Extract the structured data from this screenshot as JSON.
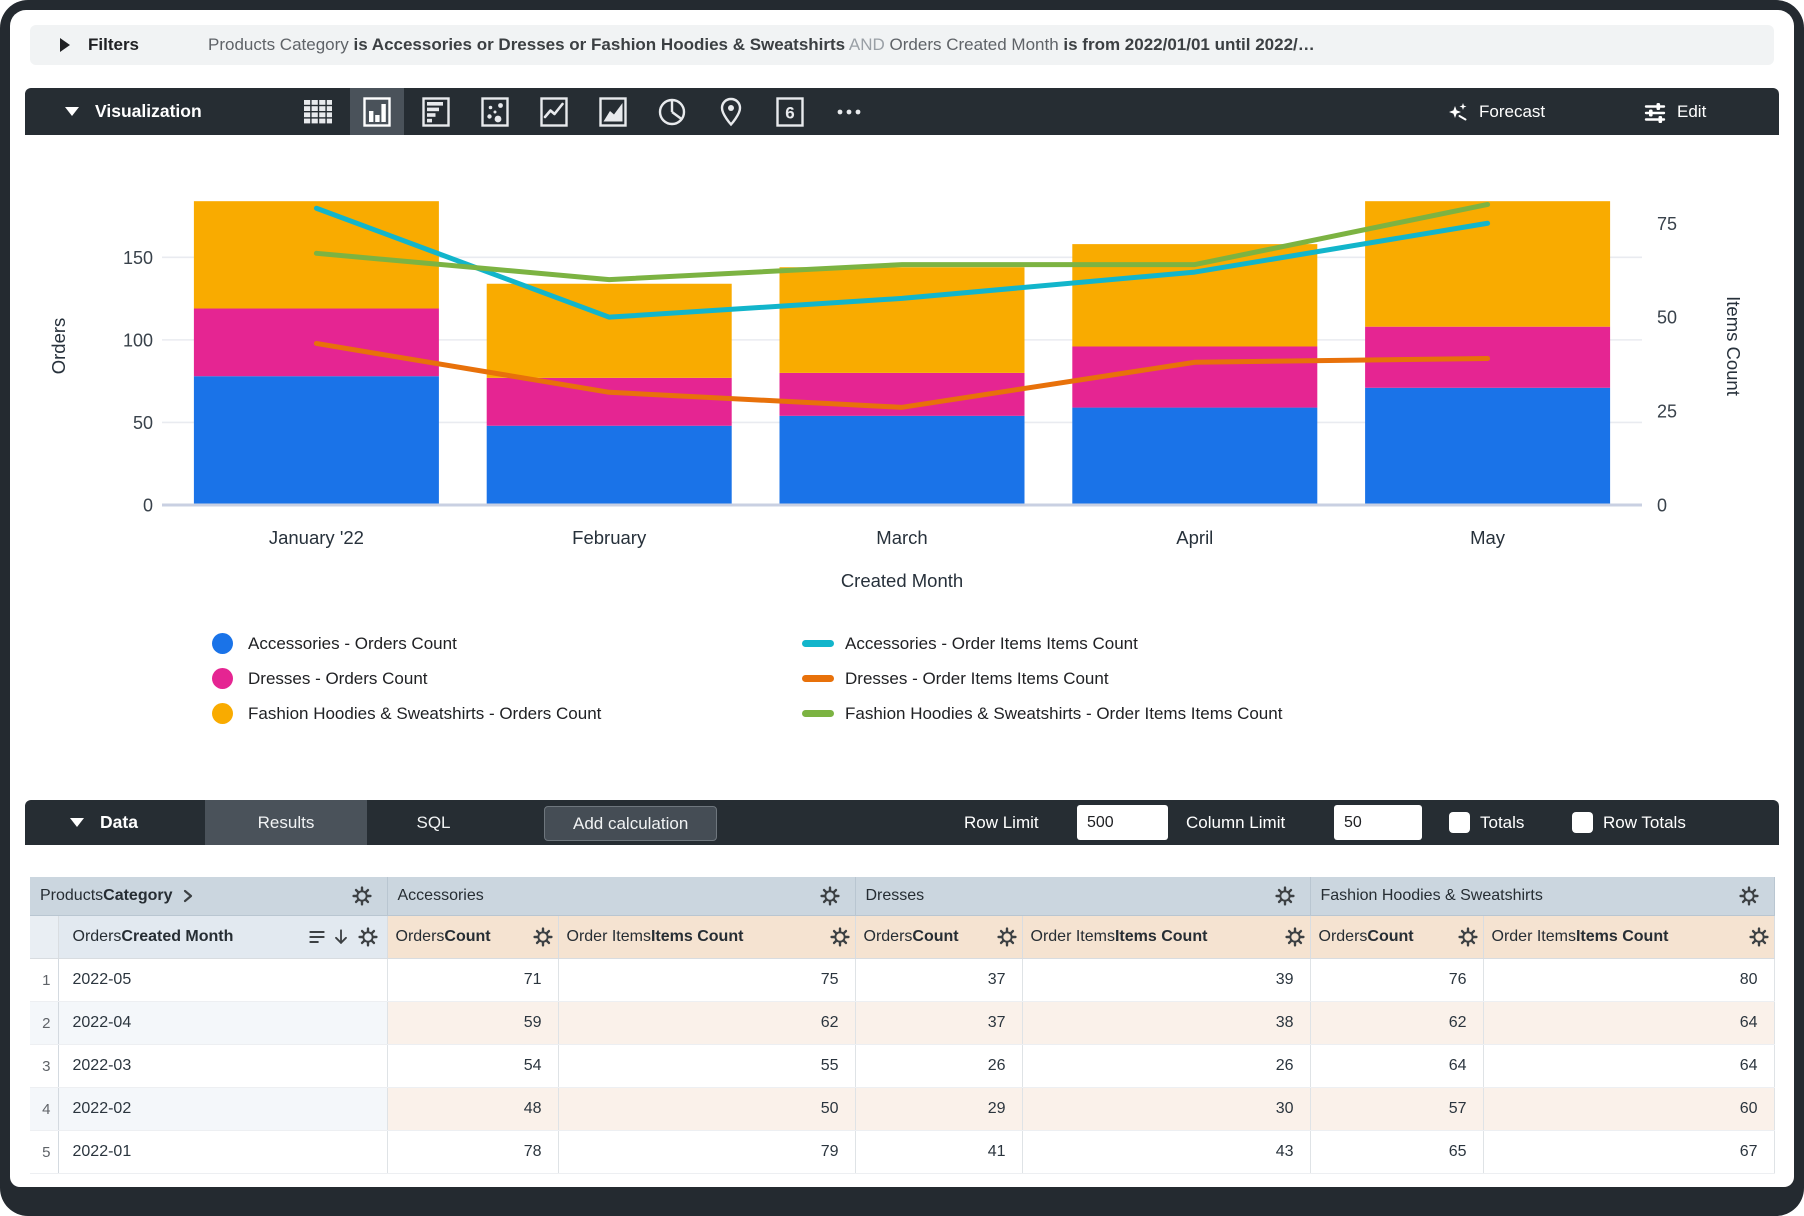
{
  "colors": {
    "toolbar_dark": "#262D33",
    "toolbar_selected": "#4A525A",
    "filters_bg": "#F1F3F4",
    "group_header_bg": "#CBD6DF",
    "dimension_header_bg": "#E2E9F0",
    "measure_header_bg": "#F5E3D1"
  },
  "filters": {
    "label": "Filters",
    "segments": [
      {
        "t": "Products Category "
      },
      {
        "t": "is Accessories or Dresses or Fashion Hoodies & Sweatshirts"
      },
      {
        "t": " AND "
      },
      {
        "t": "Orders Created Month "
      },
      {
        "t": "is from 2022/01/01 until 2022/…"
      }
    ],
    "expand_icon": "chevron-right-triangle"
  },
  "viz": {
    "label": "Visualization",
    "collapse_icon": "triangle-down",
    "icons": [
      "table-chart",
      "column-chart",
      "bar-chart",
      "scatter-chart",
      "line-chart",
      "area-chart",
      "pie-chart",
      "map-pin",
      "single-value",
      "more-ellipsis"
    ],
    "selected_icon": "column-chart",
    "single_value_glyph": "6",
    "forecast_label": "Forecast",
    "forecast_icon": "sparkle",
    "edit_label": "Edit",
    "edit_icon": "tune-sliders"
  },
  "chart_data": {
    "type": "combo-stacked-column-and-line",
    "categories": [
      "January '22",
      "February",
      "March",
      "April",
      "May"
    ],
    "bar_series": [
      {
        "name": "Accessories - Orders Count",
        "color": "#1A73E8",
        "values": [
          78,
          48,
          54,
          59,
          71
        ]
      },
      {
        "name": "Dresses - Orders Count",
        "color": "#E52592",
        "values": [
          41,
          29,
          26,
          37,
          37
        ]
      },
      {
        "name": "Fashion Hoodies & Sweatshirts - Orders Count",
        "color": "#F9AB00",
        "values": [
          65,
          57,
          64,
          62,
          76
        ]
      }
    ],
    "line_series": [
      {
        "name": "Accessories - Order Items Items Count",
        "color": "#12B5CB",
        "values": [
          79,
          50,
          55,
          62,
          75
        ]
      },
      {
        "name": "Dresses - Order Items Items Count",
        "color": "#E8710A",
        "values": [
          43,
          30,
          26,
          38,
          39
        ]
      },
      {
        "name": "Fashion Hoodies & Sweatshirts - Order Items Items Count",
        "color": "#7CB342",
        "values": [
          67,
          60,
          64,
          64,
          80
        ]
      }
    ],
    "left_axis": {
      "title": "Orders",
      "ticks": [
        0,
        50,
        100,
        150
      ],
      "max": 215
    },
    "right_axis": {
      "title": "Items Count",
      "ticks": [
        0,
        25,
        50,
        75
      ],
      "max": 94.5
    },
    "x_axis": {
      "title": "Created Month"
    },
    "grid": true,
    "legend_position": "bottom-two-columns"
  },
  "data_section": {
    "label": "Data",
    "collapse_icon": "triangle-down",
    "tabs": [
      {
        "label": "Results",
        "active": true
      },
      {
        "label": "SQL",
        "active": false
      }
    ],
    "add_calculation_label": "Add calculation",
    "row_limit_label": "Row Limit",
    "row_limit_value": "500",
    "column_limit_label": "Column Limit",
    "column_limit_value": "50",
    "totals_label": "Totals",
    "totals_checked": false,
    "row_totals_label": "Row Totals",
    "row_totals_checked": false
  },
  "table": {
    "dimension_group": {
      "normal": "Products ",
      "bold": "Category",
      "expand_icon": "chevron-right",
      "gear_icon": "gear"
    },
    "groups": [
      "Accessories",
      "Dresses",
      "Fashion Hoodies & Sweatshirts"
    ],
    "dimension_col": {
      "normal": "Orders ",
      "bold": "Created Month",
      "icons": [
        "subtotal-list",
        "sort-arrow-down",
        "gear"
      ]
    },
    "measure_cols": [
      {
        "normal": "Orders ",
        "bold": "Count"
      },
      {
        "normal": "Order Items ",
        "bold": "Items Count"
      }
    ],
    "rows": [
      {
        "num": "1",
        "month": "2022-05",
        "values": [
          71,
          75,
          37,
          39,
          76,
          80
        ]
      },
      {
        "num": "2",
        "month": "2022-04",
        "values": [
          59,
          62,
          37,
          38,
          62,
          64
        ]
      },
      {
        "num": "3",
        "month": "2022-03",
        "values": [
          54,
          55,
          26,
          26,
          64,
          64
        ]
      },
      {
        "num": "4",
        "month": "2022-02",
        "values": [
          48,
          50,
          29,
          30,
          57,
          60
        ]
      },
      {
        "num": "5",
        "month": "2022-01",
        "values": [
          78,
          79,
          41,
          43,
          65,
          67
        ]
      }
    ]
  }
}
